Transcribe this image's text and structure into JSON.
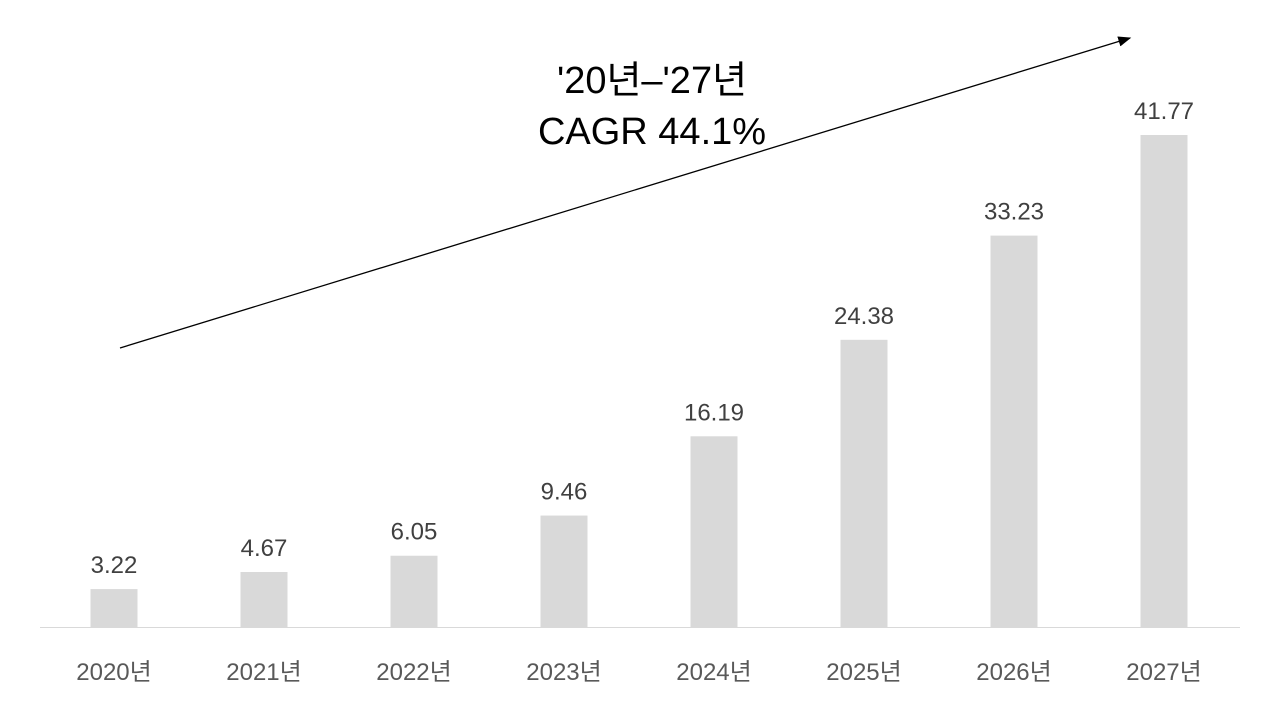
{
  "chart_data": {
    "type": "bar",
    "categories": [
      "2020년",
      "2021년",
      "2022년",
      "2023년",
      "2024년",
      "2025년",
      "2026년",
      "2027년"
    ],
    "values": [
      3.22,
      4.67,
      6.05,
      9.46,
      16.19,
      24.38,
      33.23,
      41.77
    ],
    "value_labels": [
      "3.22",
      "4.67",
      "6.05",
      "9.46",
      "16.19",
      "24.38",
      "33.23",
      "41.77"
    ],
    "title": "",
    "xlabel": "",
    "ylabel": "",
    "ylim": [
      0,
      41.77
    ],
    "grid": false,
    "legend": "none",
    "bar_color": "#d9d9d9",
    "annotation": {
      "line1": "'20년–'27년",
      "line2": "CAGR 44.1%",
      "arrow": "trend arrow rising from 2020 to 2027"
    }
  }
}
